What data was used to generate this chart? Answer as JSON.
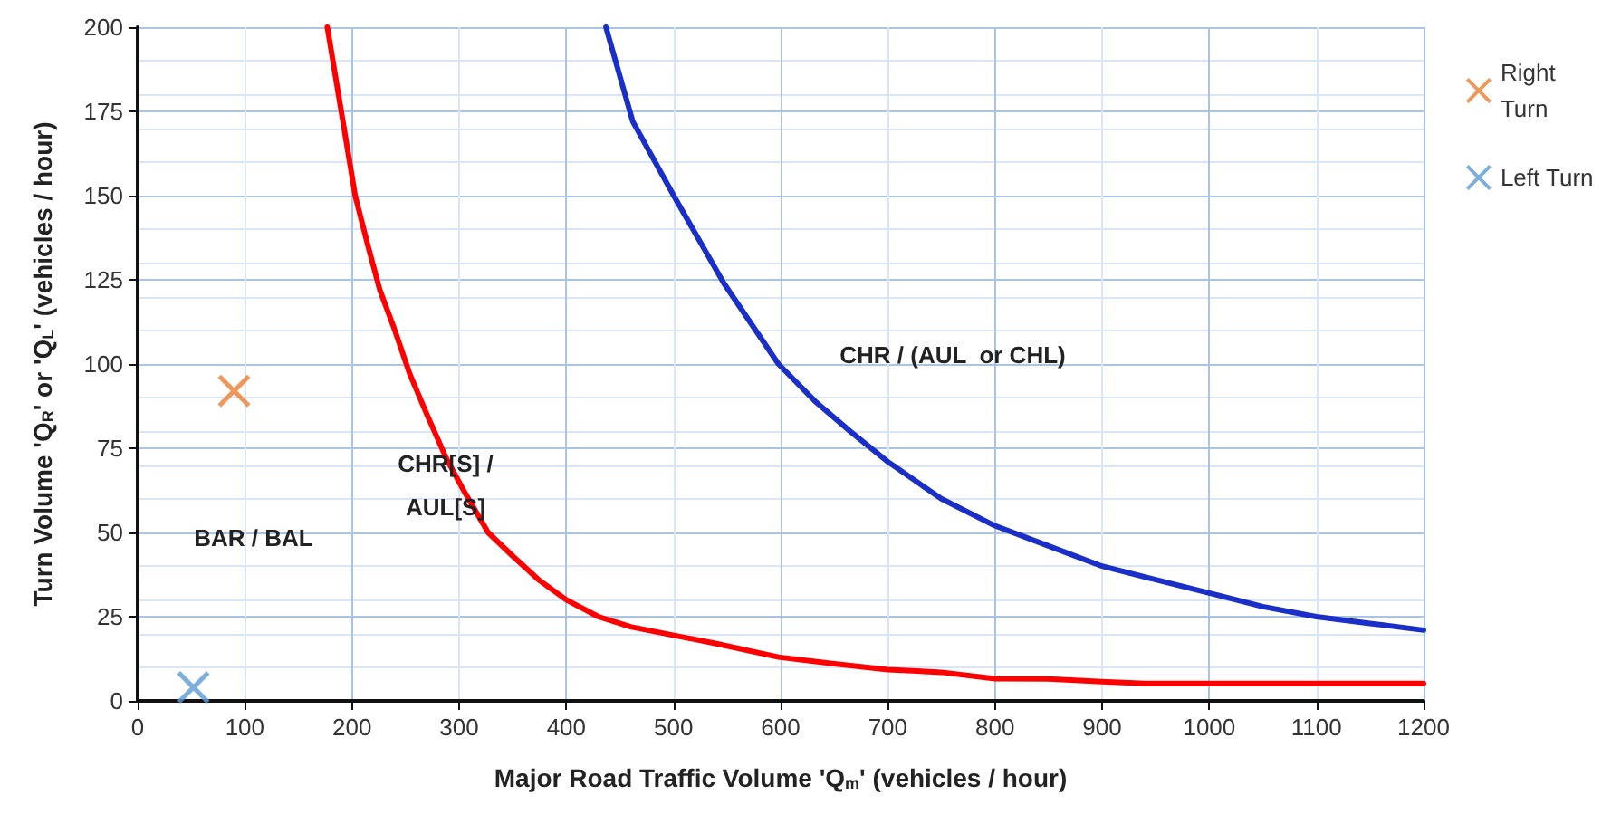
{
  "chart_data": {
    "type": "line",
    "xlabel": "Major Road Traffic Volume 'Q$_{m}$' (vehicles / hour)",
    "ylabel": "Turn Volume 'Q$_{R}$' or 'Q$_{L}$' (vehicles / hour)",
    "xlim": [
      0,
      1200
    ],
    "xticks": [
      0,
      100,
      200,
      300,
      400,
      500,
      600,
      700,
      800,
      900,
      1000,
      1100,
      1200
    ],
    "ylim": [
      0,
      200
    ],
    "yticks": [
      0,
      25,
      50,
      75,
      100,
      125,
      150,
      175,
      200
    ],
    "grid": true,
    "legend": "top right",
    "series": [
      {
        "color": "#ff0000",
        "marker": "none",
        "x": [
          177,
          190,
          203,
          215,
          226,
          240,
          254,
          270,
          288,
          305,
          327,
          350,
          374,
          400,
          430,
          460,
          492,
          540,
          598,
          650,
          700,
          750,
          800,
          850,
          900,
          940,
          1000,
          1100,
          1200
        ],
        "values": [
          200,
          175,
          150,
          135,
          122,
          110,
          97,
          85,
          72,
          62,
          50,
          43,
          36,
          30,
          25,
          22,
          20,
          17,
          13,
          11,
          9.3,
          8.5,
          6.6,
          6.5,
          5.7,
          5.2,
          5.2,
          5.2,
          5.2
        ]
      },
      {
        "color": "#1a2fc8",
        "marker": "none",
        "x": [
          437,
          462,
          502,
          547,
          598,
          632,
          665,
          700,
          750,
          800,
          850,
          900,
          950,
          1000,
          1050,
          1100,
          1150,
          1200
        ],
        "values": [
          200,
          172,
          149,
          124,
          100,
          89,
          80,
          71,
          60,
          52,
          46,
          40,
          36,
          32,
          28,
          25,
          23,
          21
        ]
      },
      {
        "type": "scatter",
        "name": "Right Turn",
        "color": "#ed7d31",
        "marker": "cross",
        "x": [
          90
        ],
        "values": [
          92
        ]
      },
      {
        "type": "scatter",
        "name": "Left Turn",
        "color": "#5b9bd5",
        "marker": "cross",
        "x": [
          52
        ],
        "values": [
          4
        ]
      }
    ],
    "annotations": [
      "BAR / BAL",
      "CHR[S] /\nAUL[S]",
      "CHR / (AUL  or CHL)"
    ]
  }
}
